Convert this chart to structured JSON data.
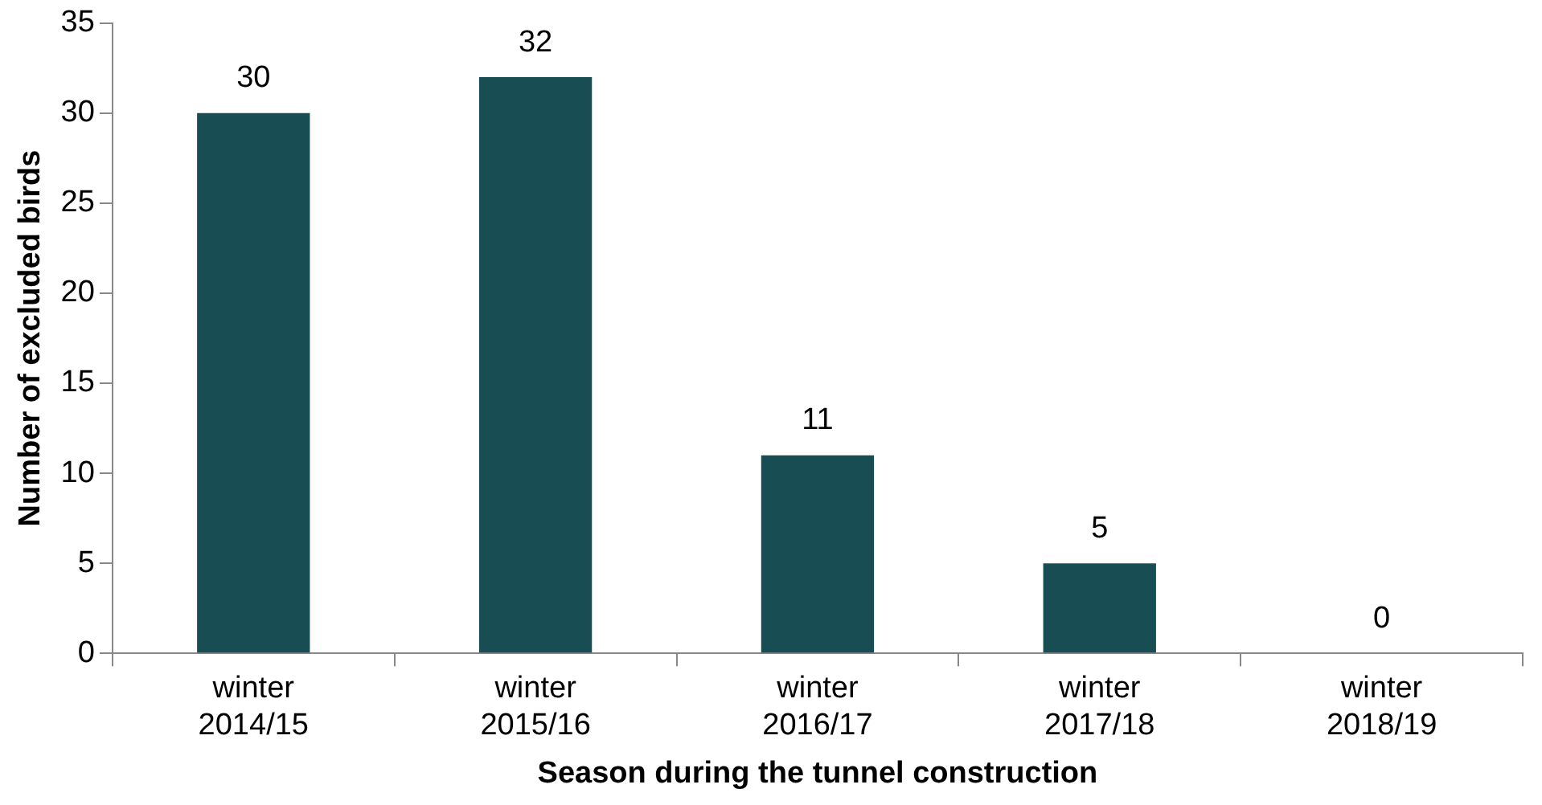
{
  "chart_data": {
    "type": "bar",
    "xlabel": "Season during the tunnel construction",
    "ylabel": "Number of excluded birds",
    "categories": [
      "winter 2014/15",
      "winter 2015/16",
      "winter 2016/17",
      "winter 2017/18",
      "winter 2018/19"
    ],
    "values": [
      30,
      32,
      11,
      5,
      0
    ],
    "color": "#194d54",
    "ylim": [
      0,
      35
    ],
    "yticks": [
      0,
      5,
      10,
      15,
      20,
      25,
      30,
      35
    ],
    "grid": false,
    "legend": false,
    "data_labels": true
  }
}
